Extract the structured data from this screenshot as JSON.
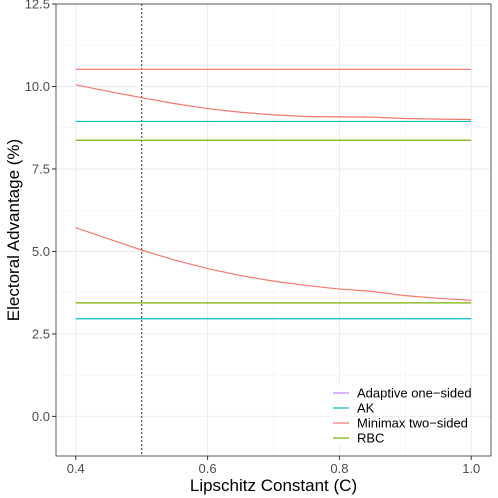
{
  "chart_data": {
    "type": "line",
    "title": "",
    "xlabel": "Lipschitz Constant (C)",
    "ylabel": "Electoral Advantage (%)",
    "xlim": [
      0.37,
      1.03
    ],
    "ylim": [
      -1.2,
      12.5
    ],
    "x_ticks": [
      0.4,
      0.6,
      0.8,
      1.0
    ],
    "x_tick_labels": [
      "0.4",
      "0.6",
      "0.8",
      "1.0"
    ],
    "y_ticks": [
      0.0,
      2.5,
      5.0,
      7.5,
      10.0,
      12.5
    ],
    "y_tick_labels": [
      "0.0",
      "2.5",
      "5.0",
      "7.5",
      "10.0",
      "12.5"
    ],
    "grid": true,
    "legend_position": "bottom-right",
    "reference_line": {
      "x": 0.5,
      "style": "dotted",
      "color": "#555555"
    },
    "legend": [
      {
        "name": "Adaptive one−sided",
        "color": "#C77CFF"
      },
      {
        "name": "AK",
        "color": "#00BFC4"
      },
      {
        "name": "Minimax two−sided",
        "color": "#F8766D"
      },
      {
        "name": "RBC",
        "color": "#7CAE00"
      }
    ],
    "series": [
      {
        "name": "Minimax two−sided",
        "color": "#F8766D",
        "x": [
          0.4,
          1.0
        ],
        "y": [
          10.52,
          10.52
        ]
      },
      {
        "name": "Minimax two−sided",
        "color": "#F8766D",
        "x": [
          0.4,
          0.45,
          0.5,
          0.55,
          0.6,
          0.65,
          0.7,
          0.75,
          0.8,
          0.85,
          0.9,
          0.95,
          1.0
        ],
        "y": [
          10.05,
          9.85,
          9.66,
          9.48,
          9.33,
          9.22,
          9.14,
          9.09,
          9.08,
          9.07,
          9.03,
          9.01,
          9.0
        ]
      },
      {
        "name": "AK",
        "color": "#00BFC4",
        "x": [
          0.4,
          1.0
        ],
        "y": [
          8.94,
          8.94
        ]
      },
      {
        "name": "RBC",
        "color": "#7CAE00",
        "x": [
          0.4,
          1.0
        ],
        "y": [
          8.37,
          8.37
        ]
      },
      {
        "name": "Minimax two−sided",
        "color": "#F8766D",
        "x": [
          0.4,
          0.45,
          0.5,
          0.55,
          0.6,
          0.65,
          0.7,
          0.75,
          0.8,
          0.85,
          0.9,
          0.95,
          1.0
        ],
        "y": [
          5.72,
          5.38,
          5.04,
          4.74,
          4.48,
          4.27,
          4.1,
          3.97,
          3.86,
          3.79,
          3.66,
          3.58,
          3.52
        ]
      },
      {
        "name": "RBC",
        "color": "#7CAE00",
        "x": [
          0.4,
          1.0
        ],
        "y": [
          3.44,
          3.44
        ]
      },
      {
        "name": "AK",
        "color": "#00BFC4",
        "x": [
          0.4,
          1.0
        ],
        "y": [
          2.96,
          2.96
        ]
      }
    ]
  }
}
